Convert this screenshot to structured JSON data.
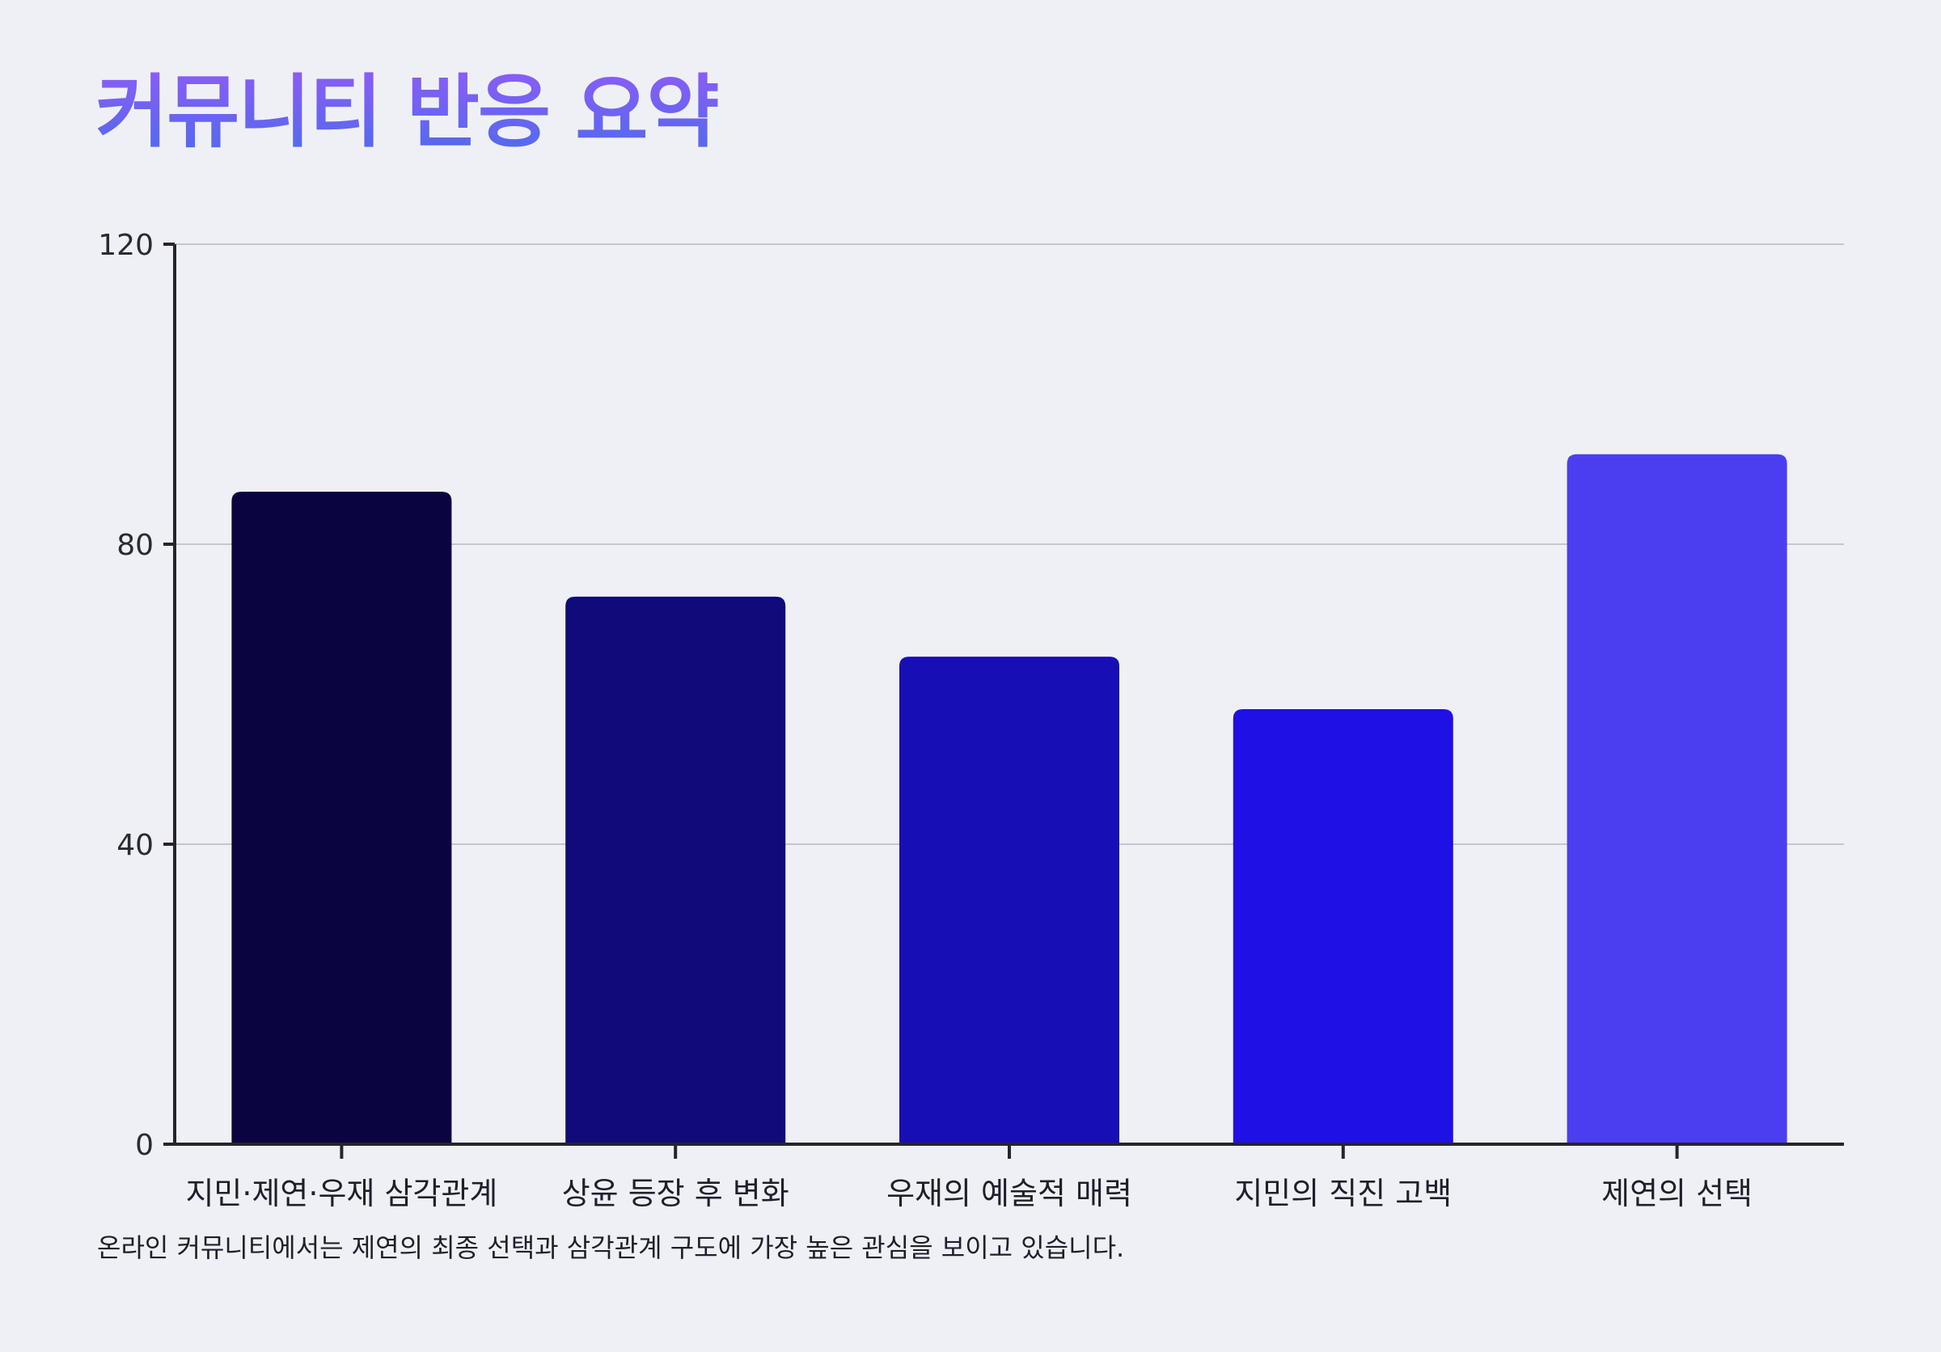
{
  "colors": {
    "background": "#eff0f6",
    "title_gradient_start": "#8b5cf6",
    "title_gradient_end": "#4f6bed",
    "grid": "#c4c5cf",
    "axis": "#25252b"
  },
  "chart_data": {
    "type": "bar",
    "title": "커뮤니티 반응 요약",
    "xlabel": "",
    "ylabel": "",
    "ylim": [
      0,
      120
    ],
    "yticks": [
      "0",
      "40",
      "80",
      "120"
    ],
    "grid": true,
    "categories": [
      "지민·제연·우재 삼각관계",
      "상윤 등장 후 변화",
      "우재의 예술적 매력",
      "지민의 직진 고백",
      "제연의 선택"
    ],
    "values": [
      87,
      73,
      65,
      58,
      92
    ],
    "bar_colors": [
      "#0a0541",
      "#100a7a",
      "#170eb5",
      "#1f10e6",
      "#4a3ef0"
    ],
    "caption": "온라인 커뮤니티에서는 제연의 최종 선택과 삼각관계 구도에 가장 높은 관심을 보이고 있습니다."
  }
}
